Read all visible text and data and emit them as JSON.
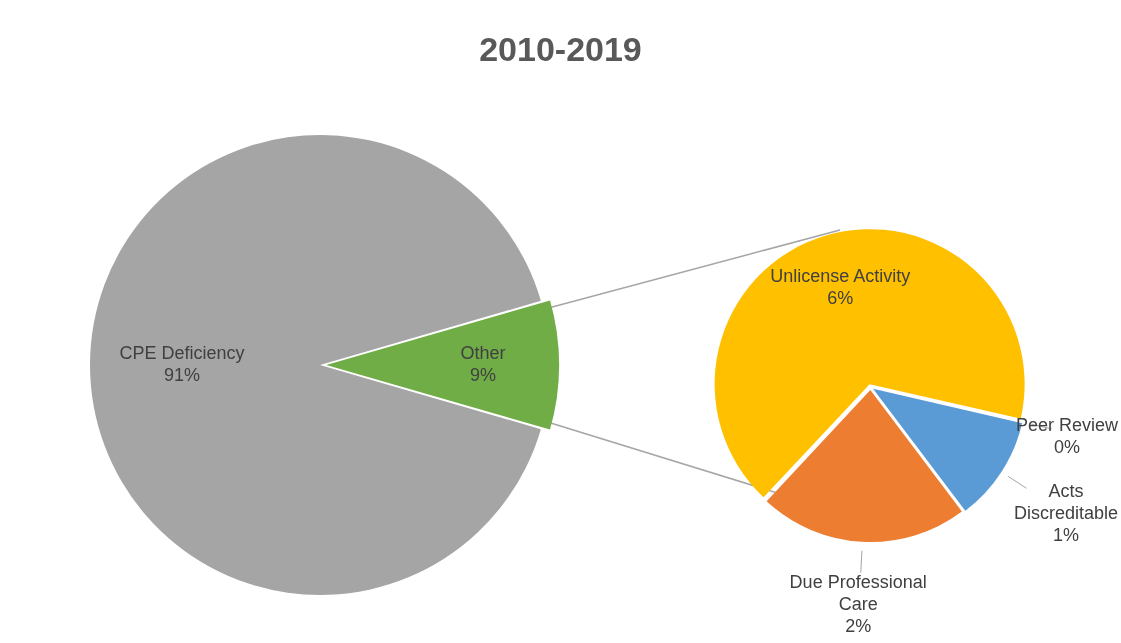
{
  "chart_data": [
    {
      "type": "pie",
      "title": "2010-2019",
      "categories": [
        "CPE Deficiency",
        "Other"
      ],
      "values": [
        91,
        9
      ],
      "colors": [
        "#a5a5a5",
        "#70ad47"
      ],
      "value_labels": [
        "91%",
        "9%"
      ]
    },
    {
      "type": "pie",
      "categories": [
        "Unlicense Activity",
        "Peer Review",
        "Acts Discreditable",
        "Due Professional Care"
      ],
      "values": [
        6,
        0,
        1,
        2
      ],
      "colors": [
        "#ffc000",
        "#4472c4",
        "#5b9bd5",
        "#ed7d31"
      ],
      "value_labels": [
        "6%",
        "0%",
        "1%",
        "2%"
      ]
    }
  ]
}
